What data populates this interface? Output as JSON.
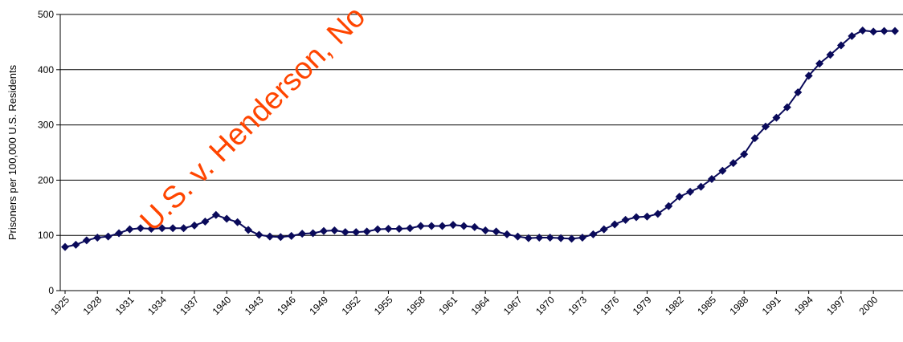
{
  "chart_data": {
    "type": "line",
    "ylabel": "Prisoners per 100,000 U.S. Residents",
    "xlabel": "",
    "title": "",
    "ylim": [
      0,
      500
    ],
    "yticks": [
      0,
      100,
      200,
      300,
      400,
      500
    ],
    "grid": "horizontal",
    "legend": "none",
    "x_tick_labels": [
      "1925",
      "1928",
      "1931",
      "1934",
      "1937",
      "1940",
      "1943",
      "1946",
      "1949",
      "1952",
      "1955",
      "1958",
      "1961",
      "1964",
      "1967",
      "1970",
      "1973",
      "1976",
      "1979",
      "1982",
      "1985",
      "1988",
      "1991",
      "1994",
      "1997",
      "2000"
    ],
    "series": [
      {
        "color": "#0a0a5a",
        "x": [
          1925,
          1926,
          1927,
          1928,
          1929,
          1930,
          1931,
          1932,
          1933,
          1934,
          1935,
          1936,
          1937,
          1938,
          1939,
          1940,
          1941,
          1942,
          1943,
          1944,
          1945,
          1946,
          1947,
          1948,
          1949,
          1950,
          1951,
          1952,
          1953,
          1954,
          1955,
          1956,
          1957,
          1958,
          1959,
          1960,
          1961,
          1962,
          1963,
          1964,
          1965,
          1966,
          1967,
          1968,
          1969,
          1970,
          1971,
          1972,
          1973,
          1974,
          1975,
          1976,
          1977,
          1978,
          1979,
          1980,
          1981,
          1982,
          1983,
          1984,
          1985,
          1986,
          1987,
          1988,
          1989,
          1990,
          1991,
          1992,
          1993,
          1994,
          1995,
          1996,
          1997,
          1998,
          1999,
          2000,
          2001,
          2002
        ],
        "values": [
          79,
          83,
          91,
          96,
          98,
          104,
          111,
          113,
          112,
          113,
          113,
          113,
          118,
          125,
          137,
          130,
          124,
          110,
          101,
          98,
          97,
          99,
          103,
          104,
          108,
          109,
          106,
          106,
          107,
          111,
          112,
          112,
          113,
          117,
          117,
          117,
          119,
          117,
          115,
          109,
          107,
          102,
          98,
          95,
          96,
          96,
          95,
          94,
          96,
          102,
          111,
          120,
          128,
          133,
          134,
          139,
          153,
          170,
          179,
          188,
          202,
          217,
          231,
          247,
          276,
          297,
          313,
          332,
          359,
          389,
          411,
          427,
          444,
          461,
          471,
          469,
          470,
          470
        ]
      }
    ]
  },
  "watermark": {
    "text": "U.S. v. Henderson, No"
  }
}
